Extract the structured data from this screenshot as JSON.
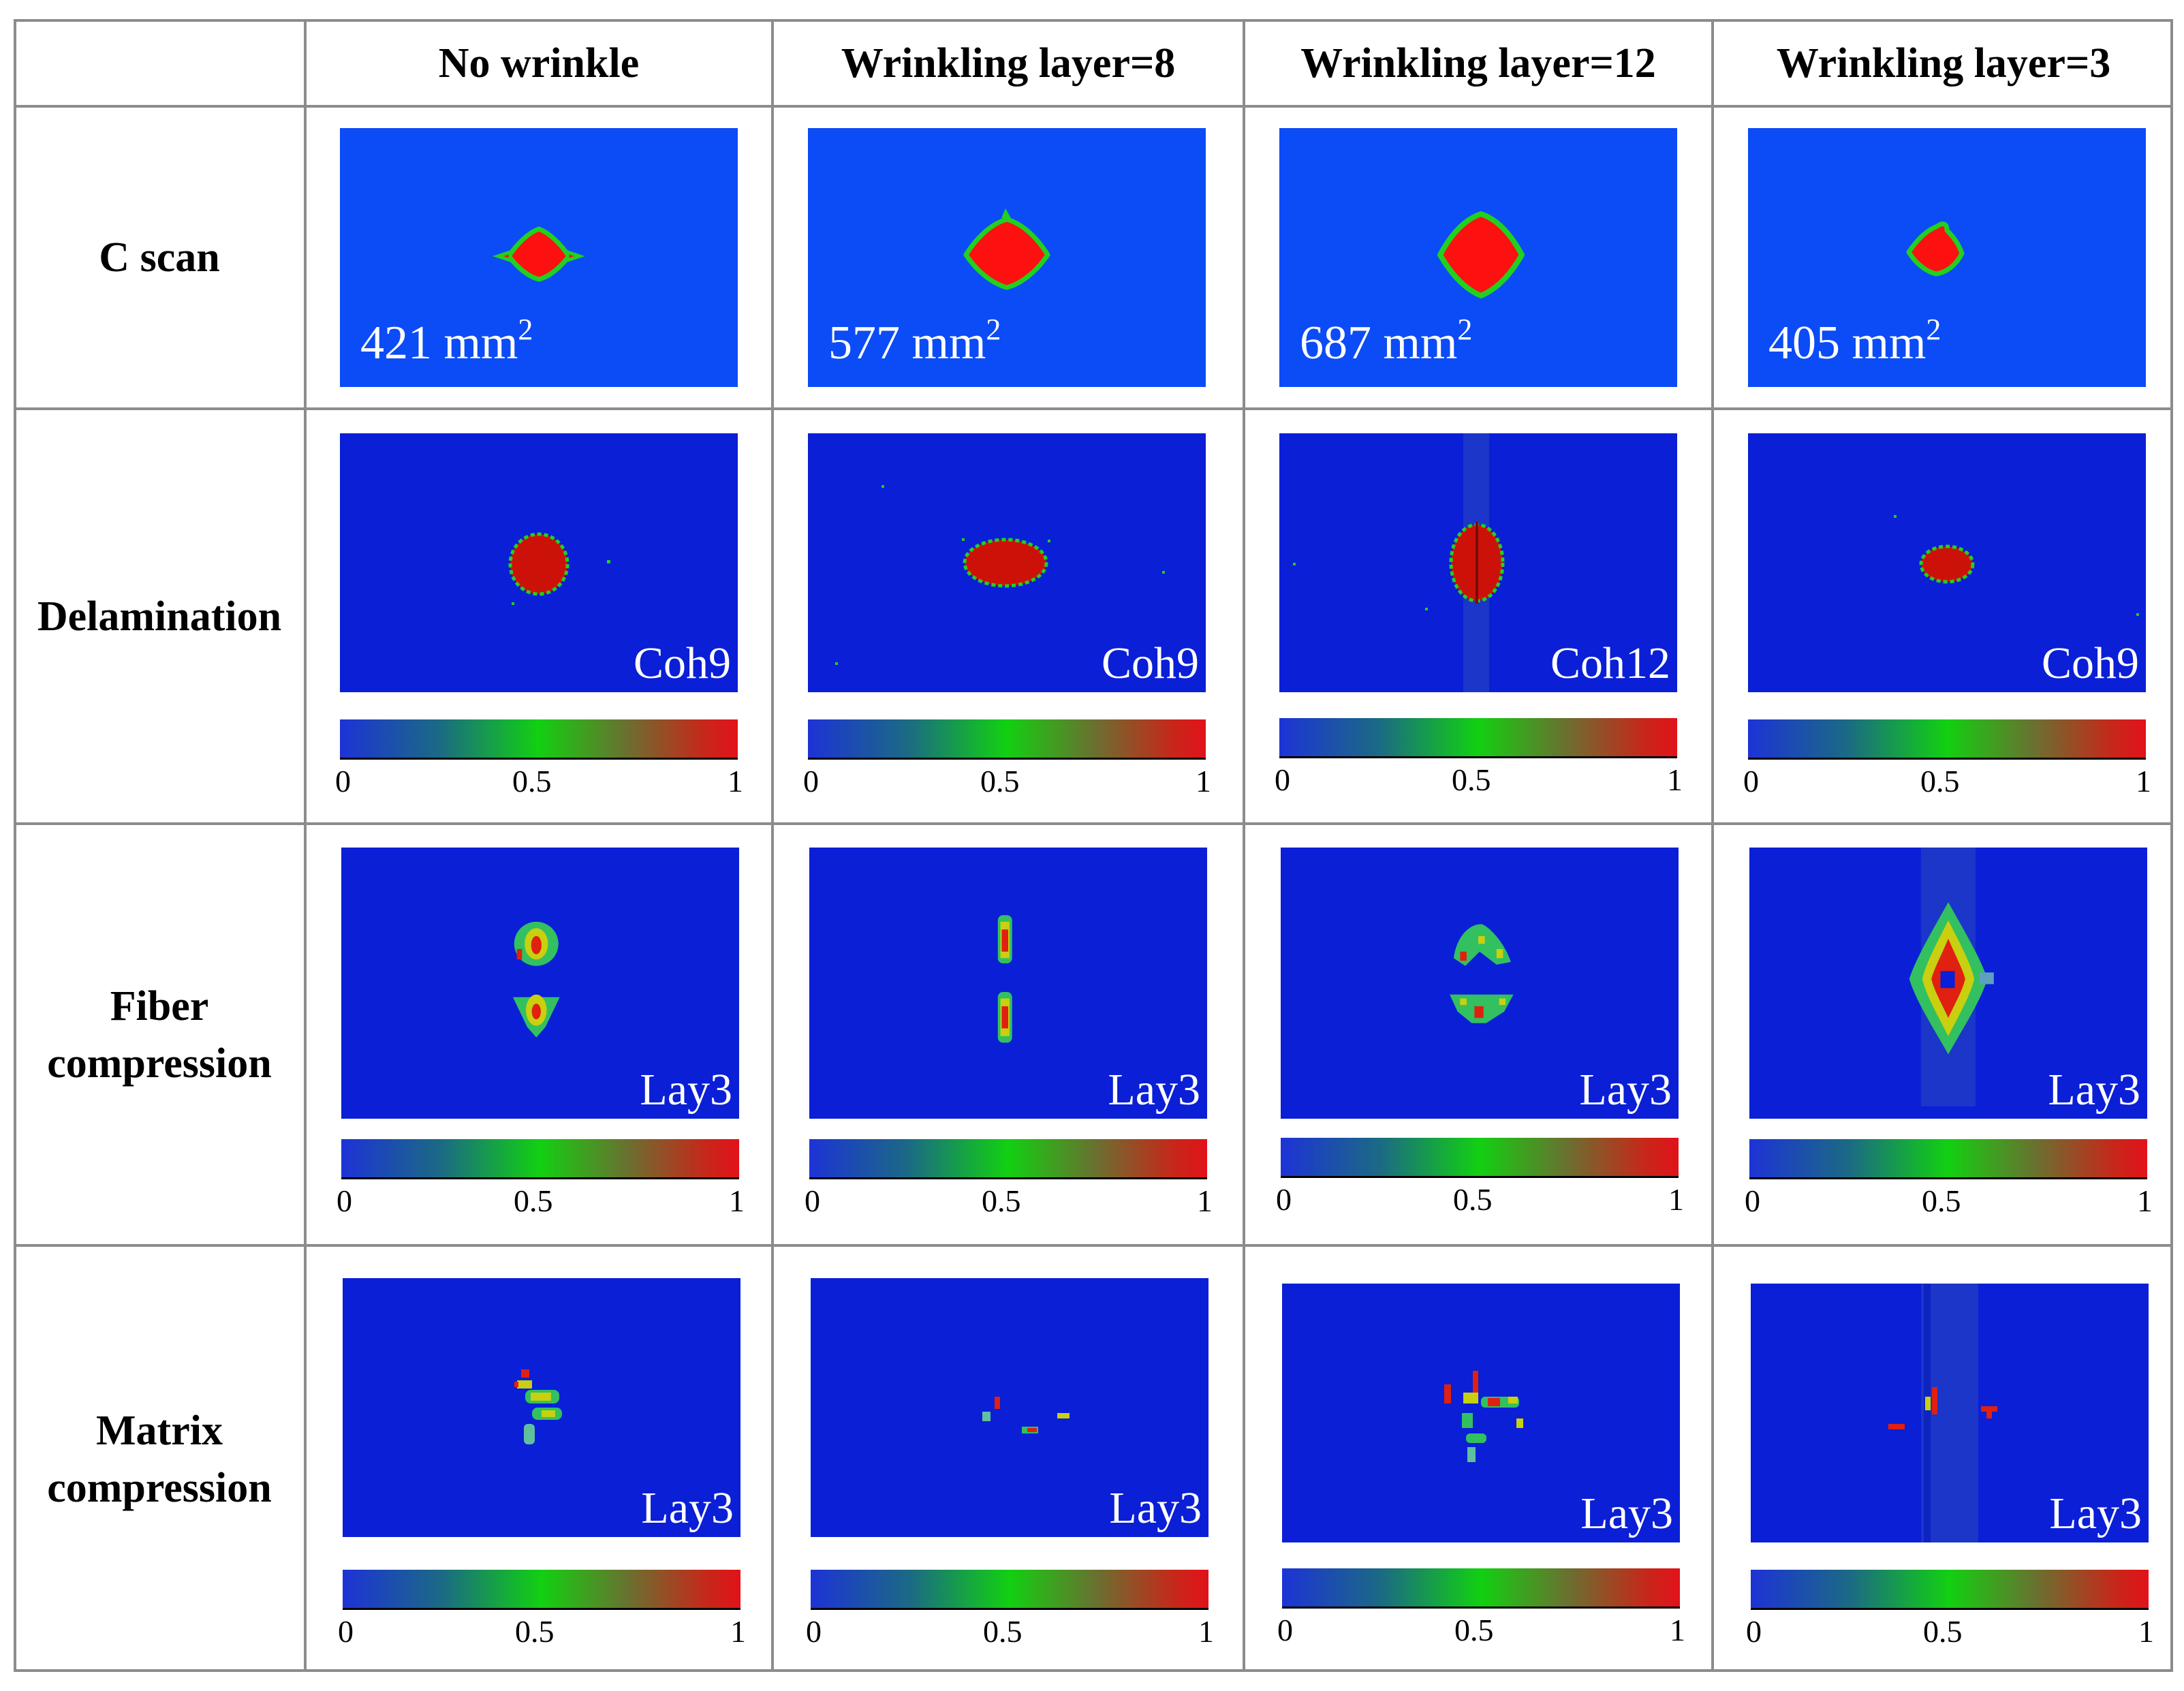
{
  "columns": [
    "No wrinkle",
    "Wrinkling layer=8",
    "Wrinkling layer=12",
    "Wrinkling layer=3"
  ],
  "rows": {
    "cscan": "C scan",
    "delamination": "Delamination",
    "fiber_line1": "Fiber",
    "fiber_line2": "compression",
    "matrix_line1": "Matrix",
    "matrix_line2": "compression"
  },
  "cscan_areas": [
    {
      "value": "421 mm",
      "exp": "2"
    },
    {
      "value": "577 mm",
      "exp": "2"
    },
    {
      "value": "687 mm",
      "exp": "2"
    },
    {
      "value": "405 mm",
      "exp": "2"
    }
  ],
  "delamination_labels": [
    "Coh9",
    "Coh9",
    "Coh12",
    "Coh9"
  ],
  "fiber_labels": [
    "Lay3",
    "Lay3",
    "Lay3",
    "Lay3"
  ],
  "matrix_labels": [
    "Lay3",
    "Lay3",
    "Lay3",
    "Lay3"
  ],
  "colorbar": {
    "min": "0",
    "mid": "0.5",
    "max": "1"
  },
  "colors": {
    "cscan_background": "#0b4cf6",
    "map_background": "#0a1fd6",
    "damage": "#ff1010",
    "edge": "#22d020",
    "grid_line": "#8c8c8c"
  }
}
